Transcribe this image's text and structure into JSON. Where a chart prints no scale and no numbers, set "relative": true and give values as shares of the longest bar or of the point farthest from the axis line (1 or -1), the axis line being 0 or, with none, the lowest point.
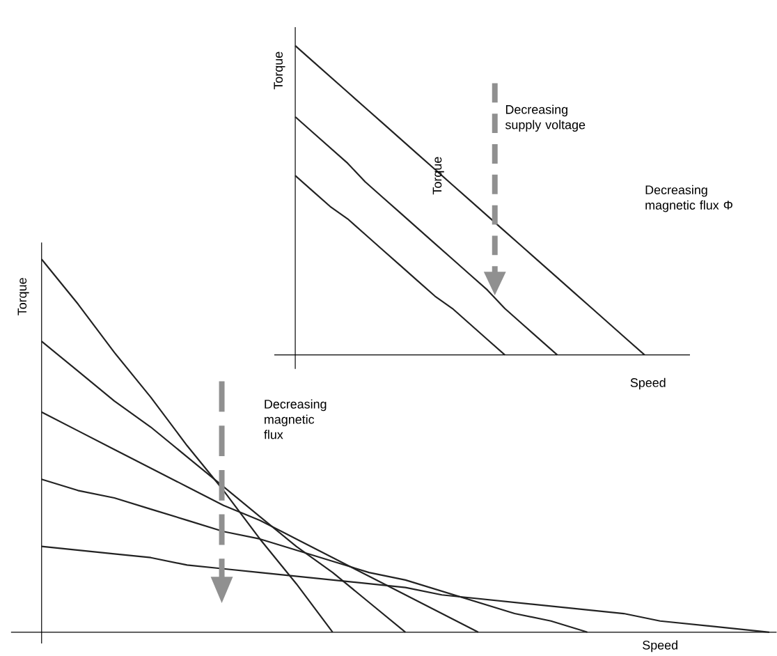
{
  "chart_data": [
    {
      "type": "line",
      "relative": true,
      "xlabel": "Speed",
      "ylabel": "Torque",
      "annotations": [
        "Decreasing supply voltage",
        "Torque",
        "Decreasing magnetic flux Φ"
      ],
      "categories": [
        null,
        null,
        null,
        null,
        null,
        null,
        null,
        null,
        null,
        null,
        null,
        null,
        null,
        null,
        null,
        null,
        null,
        null,
        null,
        null,
        null
      ],
      "series": [
        {
          "color": "#222222",
          "values": [
            1,
            0.95,
            0.9,
            0.85,
            0.8,
            0.75,
            0.7,
            0.65,
            0.6,
            0.55,
            0.5,
            0.45,
            0.4,
            0.35,
            0.3,
            0.25,
            0.2,
            0.15,
            0.1,
            0.05,
            0
          ]
        },
        {
          "color": "#222222",
          "values": [
            0.77,
            0.72,
            0.67,
            0.62,
            0.56,
            0.51,
            0.46,
            0.41,
            0.36,
            0.31,
            0.26,
            0.21,
            0.15,
            0.1,
            0.05,
            0,
            null,
            null,
            null,
            null,
            null
          ]
        },
        {
          "color": "#222222",
          "values": [
            0.58,
            0.53,
            0.48,
            0.44,
            0.39,
            0.34,
            0.29,
            0.24,
            0.19,
            0.15,
            0.1,
            0.05,
            0,
            null,
            null,
            null,
            null,
            null,
            null,
            null,
            null
          ]
        }
      ]
    },
    {
      "type": "line",
      "relative": true,
      "xlabel": "Speed",
      "ylabel": "Torque",
      "annotations": [
        "Decreasing magnetic flux"
      ],
      "categories": [
        null,
        null,
        null,
        null,
        null,
        null,
        null,
        null,
        null,
        null,
        null,
        null,
        null,
        null,
        null,
        null,
        null,
        null,
        null,
        null,
        null
      ],
      "series": [
        {
          "color": "#222222",
          "values": [
            1,
            0.88,
            0.75,
            0.63,
            0.5,
            0.38,
            0.25,
            0.13,
            0,
            null,
            null,
            null,
            null,
            null,
            null,
            null,
            null,
            null,
            null,
            null,
            null
          ]
        },
        {
          "color": "#222222",
          "values": [
            0.78,
            0.7,
            0.62,
            0.55,
            0.47,
            0.39,
            0.31,
            0.23,
            0.16,
            0.08,
            0,
            null,
            null,
            null,
            null,
            null,
            null,
            null,
            null,
            null,
            null
          ]
        },
        {
          "color": "#222222",
          "values": [
            0.59,
            0.54,
            0.49,
            0.44,
            0.39,
            0.34,
            0.3,
            0.25,
            0.2,
            0.15,
            0.1,
            0.05,
            0,
            null,
            null,
            null,
            null,
            null,
            null,
            null,
            null
          ]
        },
        {
          "color": "#222222",
          "values": [
            0.41,
            0.38,
            0.36,
            0.33,
            0.3,
            0.27,
            0.25,
            0.22,
            0.19,
            0.16,
            0.14,
            0.11,
            0.08,
            0.05,
            0.03,
            0,
            null,
            null,
            null,
            null,
            null
          ]
        },
        {
          "color": "#222222",
          "values": [
            0.23,
            0.22,
            0.21,
            0.2,
            0.18,
            0.17,
            0.16,
            0.15,
            0.14,
            0.13,
            0.12,
            0.1,
            0.09,
            0.08,
            0.07,
            0.06,
            0.05,
            0.03,
            0.02,
            0.01,
            0
          ]
        }
      ]
    }
  ]
}
